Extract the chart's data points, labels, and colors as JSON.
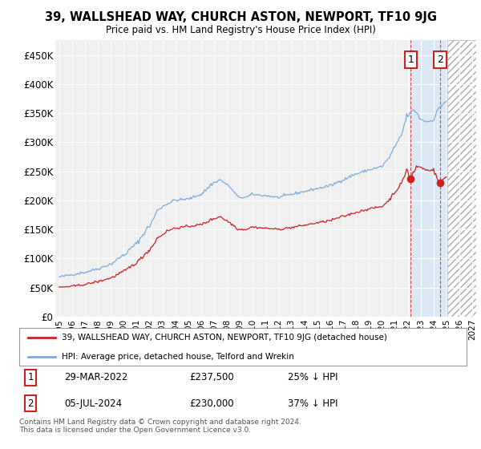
{
  "title": "39, WALLSHEAD WAY, CHURCH ASTON, NEWPORT, TF10 9JG",
  "subtitle": "Price paid vs. HM Land Registry's House Price Index (HPI)",
  "background_color": "#ffffff",
  "plot_bg_color": "#f0f0f0",
  "grid_color": "#ffffff",
  "hpi_color": "#7aabdb",
  "price_color": "#cc2222",
  "shade_fill_color": "#dce9f5",
  "sale1_x": 2022.22,
  "sale1_y": 237500,
  "sale1_date": "29-MAR-2022",
  "sale1_price": 237500,
  "sale1_hpi_pct": "25% ↓ HPI",
  "sale2_x": 2024.5,
  "sale2_y": 230000,
  "sale2_date": "05-JUL-2024",
  "sale2_price": 230000,
  "sale2_hpi_pct": "37% ↓ HPI",
  "legend1": "39, WALLSHEAD WAY, CHURCH ASTON, NEWPORT, TF10 9JG (detached house)",
  "legend2": "HPI: Average price, detached house, Telford and Wrekin",
  "footnote": "Contains HM Land Registry data © Crown copyright and database right 2024.\nThis data is licensed under the Open Government Licence v3.0.",
  "ylim": [
    0,
    475000
  ],
  "yticks": [
    0,
    50000,
    100000,
    150000,
    200000,
    250000,
    300000,
    350000,
    400000,
    450000
  ],
  "ytick_labels": [
    "£0",
    "£50K",
    "£100K",
    "£150K",
    "£200K",
    "£250K",
    "£300K",
    "£350K",
    "£400K",
    "£450K"
  ],
  "x_min": 1994.7,
  "x_max": 2027.3,
  "shade_start": 2022.22,
  "shade_end": 2025.08,
  "hatch_start": 2025.08,
  "hatch_end": 2027.3
}
